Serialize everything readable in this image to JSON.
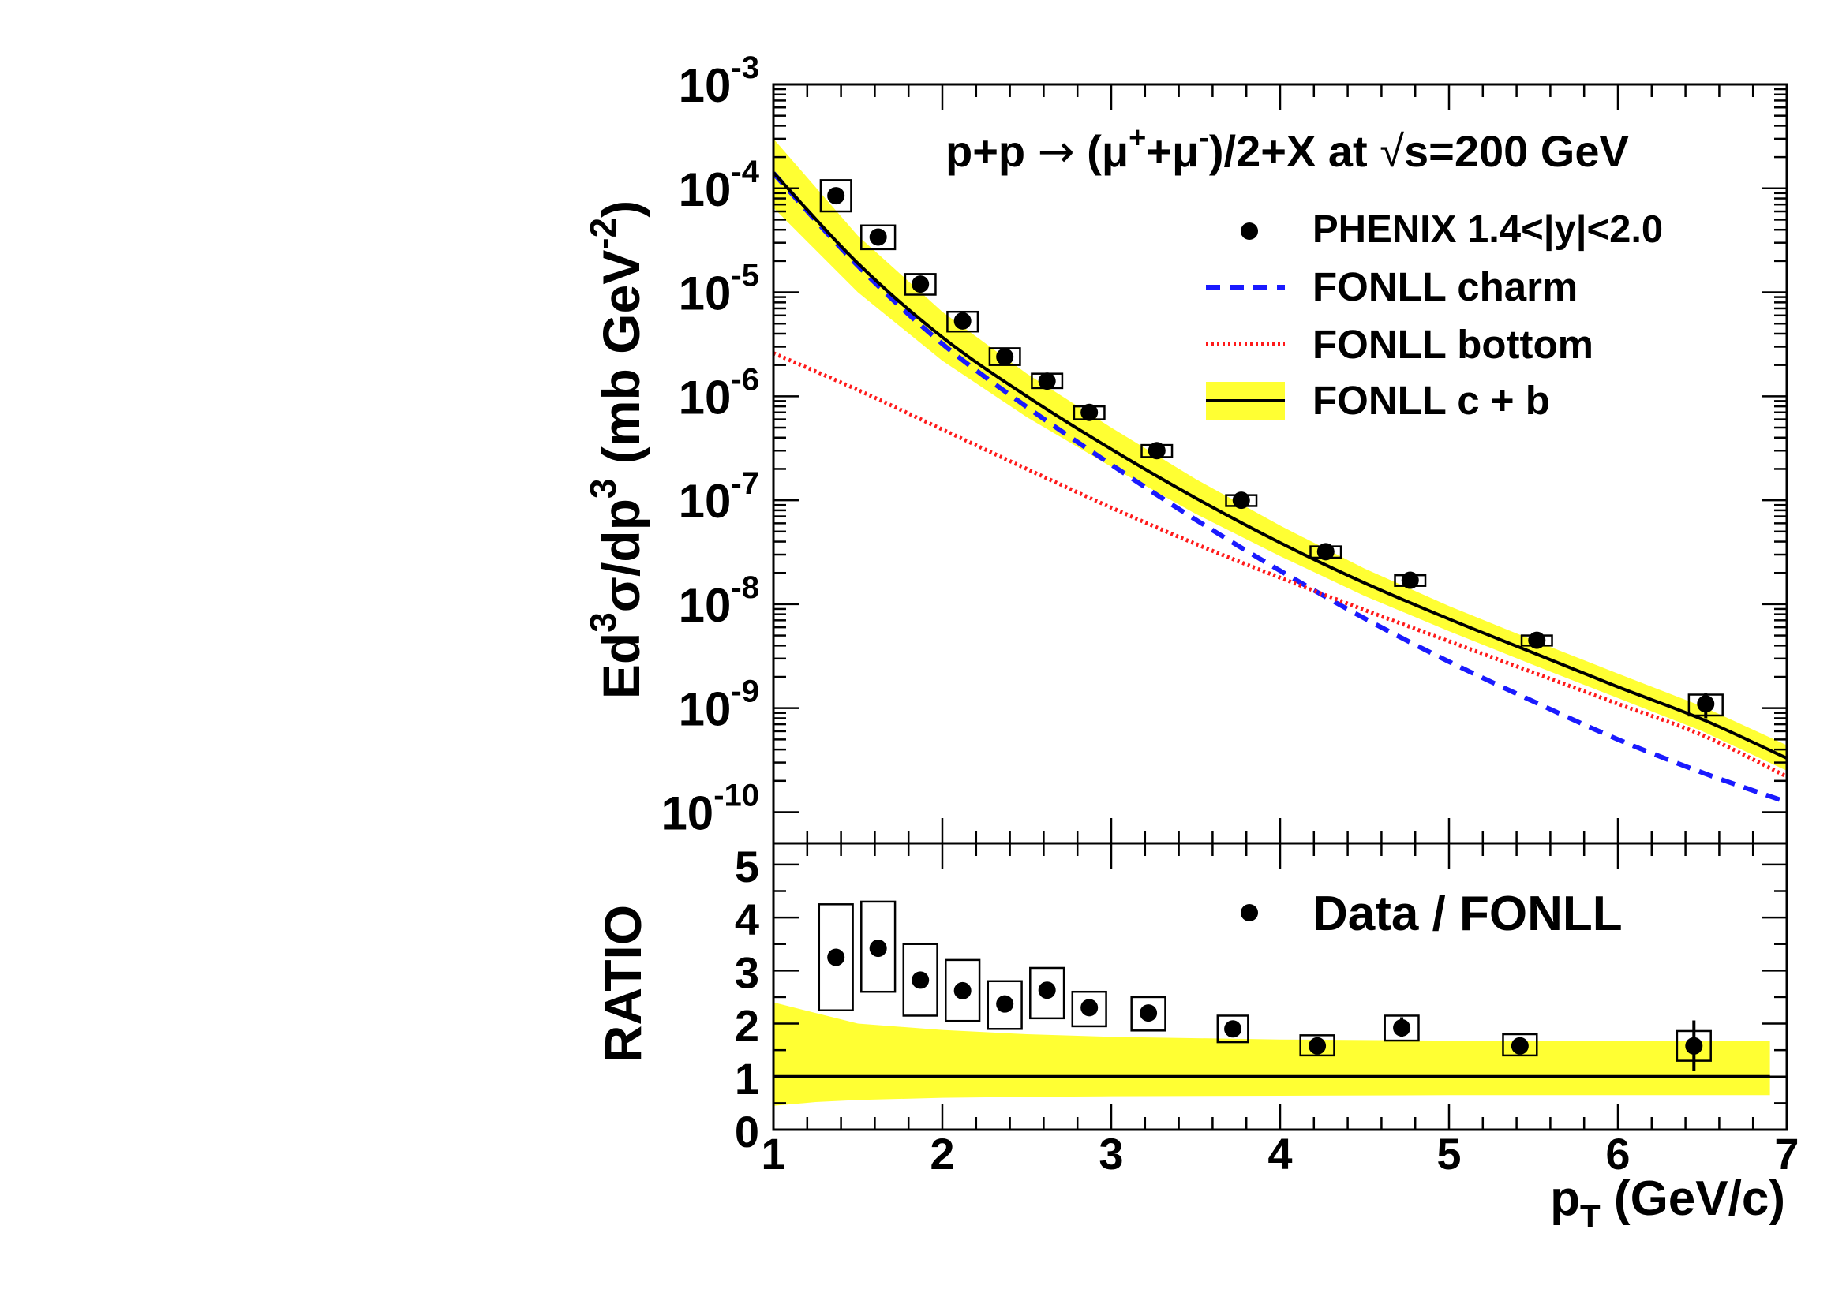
{
  "chart_data": [
    {
      "type": "scatter",
      "panel": "main",
      "title": "p+p → (μ⁺+μ⁻)/2+X at √s=200 GeV",
      "title_parts": {
        "pre": "p+p ",
        "arrow": "→",
        "mid1": " (μ",
        "sup1": "+",
        "mid2": "+μ",
        "sup2": "-",
        "mid3": ")/2+X at ",
        "sqrt": "√",
        "post": "s=200 GeV"
      },
      "ylabel": "Ed³σ/dp³ (mb GeV⁻²)",
      "ylabel_parts": {
        "a": "Ed",
        "sup1": "3",
        "b": "σ/dp",
        "sup2": "3",
        "c": " (mb GeV",
        "sup3": "-2",
        "d": ")"
      },
      "y_scale": "log",
      "xlim": [
        1,
        7
      ],
      "ylim_exponents": [
        -10.3,
        -3
      ],
      "ytick_labels": [
        {
          "exp": -3,
          "base": "10",
          "sup": "-3"
        },
        {
          "exp": -4,
          "base": "10",
          "sup": "-4"
        },
        {
          "exp": -5,
          "base": "10",
          "sup": "-5"
        },
        {
          "exp": -6,
          "base": "10",
          "sup": "-6"
        },
        {
          "exp": -7,
          "base": "10",
          "sup": "-7"
        },
        {
          "exp": -8,
          "base": "10",
          "sup": "-8"
        },
        {
          "exp": -9,
          "base": "10",
          "sup": "-9"
        },
        {
          "exp": -10,
          "base": "10",
          "sup": "-10"
        }
      ],
      "legend_position": "top-right",
      "legend": [
        {
          "label": "PHENIX 1.4<|y|<2.0",
          "kind": "marker"
        },
        {
          "label": "FONLL charm",
          "kind": "dashed"
        },
        {
          "label": "FONLL bottom",
          "kind": "dotted"
        },
        {
          "label": "FONLL c + b",
          "kind": "band"
        }
      ],
      "colors": {
        "charm": "#1a1aff",
        "bottom": "#ff1a1a",
        "total": "#000000",
        "band": "#ffff33"
      },
      "series": [
        {
          "name": "PHENIX 1.4<|y|<2.0",
          "x": [
            1.37,
            1.62,
            1.87,
            2.12,
            2.37,
            2.62,
            2.87,
            3.27,
            3.77,
            4.27,
            4.77,
            5.52,
            6.52
          ],
          "y": [
            8.5e-05,
            3.4e-05,
            1.2e-05,
            5.3e-06,
            2.4e-06,
            1.4e-06,
            7e-07,
            3e-07,
            1e-07,
            3.2e-08,
            1.7e-08,
            4.5e-09,
            1.1e-09
          ],
          "sys_half_width": [
            0.09,
            0.1,
            0.09,
            0.09,
            0.09,
            0.09,
            0.09,
            0.09,
            0.09,
            0.09,
            0.09,
            0.09,
            0.1
          ],
          "y_low": [
            6e-05,
            2.6e-05,
            9.5e-06,
            4.2e-06,
            2e-06,
            1.2e-06,
            6e-07,
            2.6e-07,
            8.8e-08,
            2.8e-08,
            1.5e-08,
            4e-09,
            8.5e-10
          ],
          "y_high": [
            0.00012,
            4.4e-05,
            1.5e-05,
            6.5e-06,
            2.9e-06,
            1.65e-06,
            8e-07,
            3.4e-07,
            1.12e-07,
            3.6e-08,
            1.9e-08,
            5e-09,
            1.35e-09
          ],
          "stat_low": [
            8.5e-05,
            3.4e-05,
            1.2e-05,
            5.3e-06,
            2.4e-06,
            1.4e-06,
            7e-07,
            3e-07,
            1e-07,
            3.2e-08,
            1.7e-08,
            4.5e-09,
            8e-10
          ],
          "stat_high": [
            8.5e-05,
            3.4e-05,
            1.2e-05,
            5.3e-06,
            2.4e-06,
            1.4e-06,
            7e-07,
            3e-07,
            1e-07,
            3.2e-08,
            1.7e-08,
            4.5e-09,
            1.4e-09
          ]
        },
        {
          "name": "FONLL charm",
          "x": [
            1.0,
            1.5,
            2.0,
            2.5,
            3.0,
            3.5,
            4.0,
            4.5,
            5.0,
            5.5,
            6.0,
            6.5,
            7.0
          ],
          "y": [
            0.00014,
            1.8e-05,
            3.2e-06,
            7.9e-07,
            2.2e-07,
            6.5e-08,
            2.1e-08,
            7.3e-09,
            2.8e-09,
            1.16e-09,
            5e-10,
            2.4e-10,
            1.25e-10
          ]
        },
        {
          "name": "FONLL bottom",
          "x": [
            1.0,
            1.5,
            2.0,
            2.5,
            3.0,
            3.5,
            4.0,
            4.5,
            5.0,
            5.5,
            6.0,
            6.5,
            7.0
          ],
          "y": [
            2.6e-06,
            1.15e-06,
            4.8e-07,
            2e-07,
            8.5e-08,
            3.8e-08,
            1.8e-08,
            8.8e-09,
            4.4e-09,
            2.2e-09,
            1.1e-09,
            5.5e-10,
            2.2e-10
          ]
        },
        {
          "name": "FONLL c + b",
          "x": [
            1.0,
            1.5,
            2.0,
            2.5,
            3.0,
            3.5,
            4.0,
            4.5,
            5.0,
            5.5,
            6.0,
            6.5,
            7.0
          ],
          "y": [
            0.000142,
            1.9e-05,
            3.7e-06,
            1e-06,
            3.1e-07,
            1.05e-07,
            3.9e-08,
            1.6e-08,
            7.2e-09,
            3.4e-09,
            1.6e-09,
            7.8e-10,
            3.3e-10
          ],
          "band_low": [
            6.5e-05,
            1e-05,
            2.2e-06,
            6.3e-07,
            2.1e-07,
            7.4e-08,
            2.9e-08,
            1.2e-08,
            5.5e-09,
            2.6e-09,
            1.25e-09,
            6e-10,
            2.5e-10
          ],
          "band_high": [
            0.0003,
            3.5e-05,
            6.5e-06,
            1.65e-06,
            5e-07,
            1.6e-07,
            5.7e-08,
            2.2e-08,
            9.6e-09,
            4.5e-09,
            2.15e-09,
            1.04e-09,
            4.4e-10
          ]
        }
      ]
    },
    {
      "type": "scatter",
      "panel": "ratio",
      "ylabel": "RATIO",
      "xlabel": "p_T (GeV/c)",
      "xlabel_parts": {
        "a": "p",
        "sub": "T",
        "b": " (GeV/c)"
      },
      "xlim": [
        1,
        7
      ],
      "ylim": [
        0,
        5.4
      ],
      "xticks": [
        1,
        2,
        3,
        4,
        5,
        6,
        7
      ],
      "yticks": [
        0,
        1,
        2,
        3,
        4,
        5
      ],
      "legend": [
        {
          "label": "Data / FONLL",
          "kind": "marker"
        }
      ],
      "reference_line": 1,
      "band": {
        "x": [
          1.0,
          1.25,
          1.5,
          2.0,
          2.5,
          3.0,
          4.0,
          5.0,
          6.0,
          6.9
        ],
        "low": [
          0.45,
          0.52,
          0.56,
          0.6,
          0.62,
          0.63,
          0.64,
          0.65,
          0.65,
          0.65
        ],
        "high": [
          2.4,
          2.2,
          2.0,
          1.88,
          1.8,
          1.75,
          1.7,
          1.68,
          1.67,
          1.67
        ]
      },
      "series": [
        {
          "name": "Data / FONLL",
          "x": [
            1.37,
            1.62,
            1.87,
            2.12,
            2.37,
            2.62,
            2.87,
            3.22,
            3.72,
            4.22,
            4.72,
            5.42,
            6.45
          ],
          "y": [
            3.25,
            3.42,
            2.82,
            2.62,
            2.37,
            2.63,
            2.3,
            2.2,
            1.9,
            1.58,
            1.92,
            1.58,
            1.58
          ],
          "sys_low": [
            2.25,
            2.6,
            2.15,
            2.05,
            1.9,
            2.1,
            1.95,
            1.87,
            1.65,
            1.4,
            1.68,
            1.4,
            1.3
          ],
          "sys_high": [
            4.25,
            4.3,
            3.5,
            3.2,
            2.8,
            3.05,
            2.6,
            2.5,
            2.15,
            1.78,
            2.15,
            1.8,
            1.86
          ],
          "sys_half_width": [
            0.1,
            0.1,
            0.1,
            0.1,
            0.1,
            0.1,
            0.1,
            0.1,
            0.09,
            0.1,
            0.1,
            0.1,
            0.1
          ],
          "stat_low": [
            3.25,
            3.42,
            2.82,
            2.62,
            2.37,
            2.63,
            2.3,
            2.2,
            1.9,
            1.58,
            1.75,
            1.42,
            1.1
          ],
          "stat_high": [
            3.25,
            3.42,
            2.82,
            2.62,
            2.37,
            2.63,
            2.3,
            2.2,
            1.9,
            1.58,
            2.12,
            1.75,
            2.06
          ]
        }
      ]
    }
  ]
}
